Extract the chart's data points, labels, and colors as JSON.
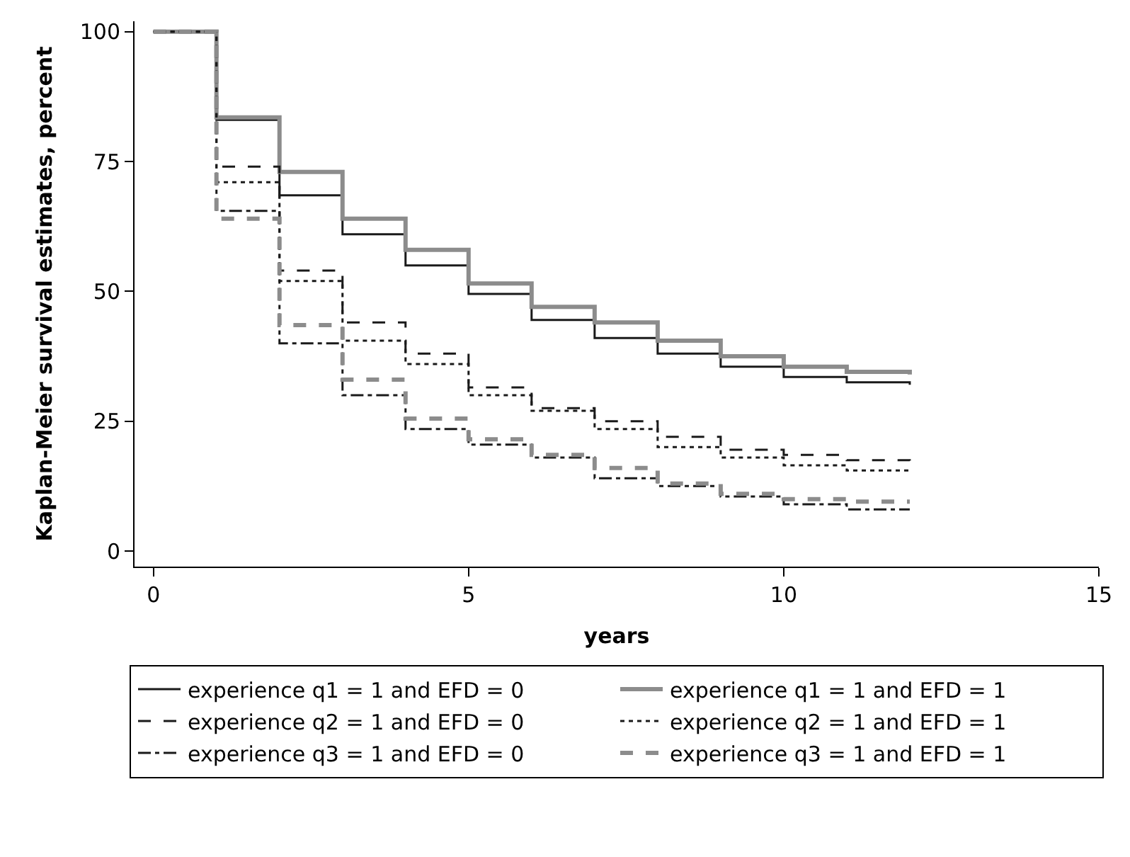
{
  "chart_data": {
    "type": "step",
    "xlabel": "years",
    "ylabel": "Kaplan-Meier survival estimates, percent",
    "x": [
      0,
      1,
      2,
      3,
      4,
      5,
      6,
      7,
      8,
      9,
      10,
      11,
      12
    ],
    "xlim": [
      -0.3,
      15
    ],
    "xticks": [
      0,
      5,
      10,
      15
    ],
    "ylim": [
      -3,
      102
    ],
    "yticks": [
      0,
      25,
      50,
      75,
      100
    ],
    "legend": "bottom",
    "marker": "none",
    "series": [
      {
        "name": "experience q1 = 1 and EFD = 0",
        "color": "#1a1a1a",
        "line_style": "solid",
        "values": [
          100,
          83,
          68.5,
          61,
          55,
          49.5,
          44.5,
          41,
          38,
          35.5,
          33.5,
          32.5,
          32
        ]
      },
      {
        "name": "experience q1 = 1 and EFD = 1",
        "color": "#8c8c8c",
        "line_style": "solid",
        "values": [
          100,
          83.5,
          73,
          64,
          58,
          51.5,
          47,
          44,
          40.5,
          37.5,
          35.5,
          34.5,
          34
        ]
      },
      {
        "name": "experience q2 = 1 and EFD = 0",
        "color": "#1a1a1a",
        "line_style": "dashed",
        "values": [
          100,
          74,
          54,
          44,
          38,
          31.5,
          27.5,
          25,
          22,
          19.5,
          18.5,
          17.5,
          17
        ]
      },
      {
        "name": "experience q2 = 1 and EFD = 1",
        "color": "#1a1a1a",
        "line_style": "dotted",
        "values": [
          100,
          71,
          52,
          40.5,
          36,
          30,
          27,
          23.5,
          20,
          18,
          16.5,
          15.5,
          15.5
        ]
      },
      {
        "name": "experience q3 = 1 and EFD = 0",
        "color": "#1a1a1a",
        "line_style": "dashdot",
        "values": [
          100,
          65.5,
          40,
          30,
          23.5,
          20.5,
          18,
          14,
          12.5,
          10.5,
          9,
          8,
          8
        ]
      },
      {
        "name": "experience q3 = 1 and EFD = 1",
        "color": "#8c8c8c",
        "line_style": "dashed",
        "values": [
          100,
          64,
          43.5,
          33,
          25.5,
          21.5,
          18.5,
          16,
          13,
          11,
          10,
          9.5,
          9.5
        ]
      }
    ]
  }
}
